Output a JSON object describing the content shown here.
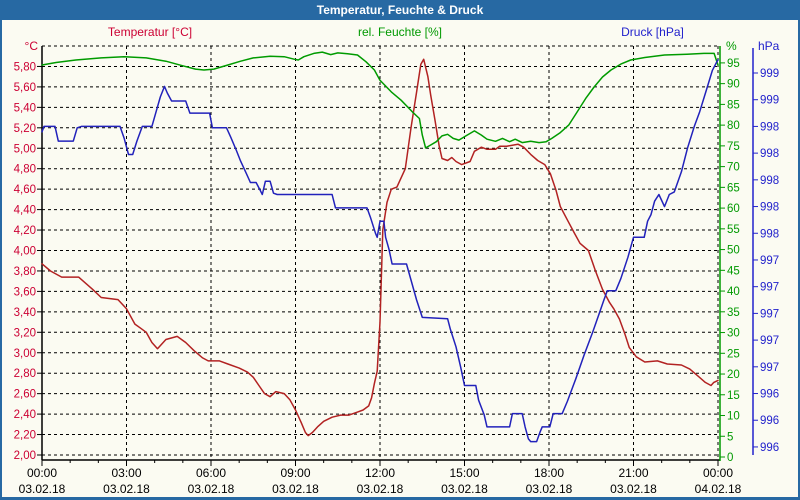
{
  "window": {
    "title": "Temperatur, Feuchte & Druck"
  },
  "chart_data": {
    "type": "line",
    "title": "Temperatur, Feuchte & Druck",
    "grid": {
      "color": "#000000",
      "dash": "3 3",
      "shown": true
    },
    "x_axis": {
      "range_hours": [
        0,
        24
      ],
      "major_tick_hours": 3,
      "minor_tick_hours": 1,
      "tick_times": [
        "00:00",
        "03:00",
        "06:00",
        "09:00",
        "12:00",
        "15:00",
        "18:00",
        "21:00",
        "00:00"
      ],
      "tick_dates": [
        "03.02.18",
        "03.02.18",
        "03.02.18",
        "03.02.18",
        "03.02.18",
        "03.02.18",
        "03.02.18",
        "03.02.18",
        "04.02.18"
      ]
    },
    "axes": {
      "temperature": {
        "label": "Temperatur [°C]",
        "unit": "°C",
        "color": "#CC0033",
        "side": "left",
        "min": 2.0,
        "max": 6.0,
        "tick_step": 0.2,
        "tick_labels": [
          "5,80",
          "5,60",
          "5,40",
          "5,20",
          "5,00",
          "4,80",
          "4,60",
          "4,40",
          "4,20",
          "4,00",
          "3,80",
          "3,60",
          "3,40",
          "3,20",
          "3,00",
          "2,80",
          "2,60",
          "2,40",
          "2,20",
          "2,00"
        ]
      },
      "humidity": {
        "label": "rel. Feuchte [%]",
        "unit": "%",
        "color": "#009900",
        "side": "right-inner",
        "tick_values": [
          95,
          90,
          85,
          80,
          75,
          70,
          65,
          60,
          55,
          50,
          45,
          40,
          35,
          30,
          25,
          20,
          15,
          10,
          5,
          0
        ],
        "tick_labels": [
          "95",
          "90",
          "85",
          "80",
          "75",
          "70",
          "65",
          "60",
          "55",
          "50",
          "45",
          "40",
          "35",
          "30",
          "25",
          "20",
          "15",
          "10",
          "5",
          "0"
        ]
      },
      "pressure": {
        "label": "Druck [hPa]",
        "unit": "hPa",
        "color": "#2222CC",
        "side": "right-outer",
        "tick_top_value": 999.2,
        "tick_step": 0.2,
        "tick_labels": [
          "999",
          "999",
          "998",
          "998",
          "998",
          "998",
          "998",
          "997",
          "997",
          "997",
          "997",
          "997",
          "996",
          "996",
          "996"
        ]
      }
    },
    "series": [
      {
        "name": "Temperatur",
        "axis": "temperature",
        "color": "#B22222",
        "points": [
          [
            0,
            3.87
          ],
          [
            0.3,
            3.8
          ],
          [
            0.7,
            3.74
          ],
          [
            1.3,
            3.74
          ],
          [
            1.8,
            3.62
          ],
          [
            2.1,
            3.54
          ],
          [
            2.7,
            3.52
          ],
          [
            3,
            3.43
          ],
          [
            3.3,
            3.28
          ],
          [
            3.5,
            3.24
          ],
          [
            3.7,
            3.2
          ],
          [
            3.9,
            3.1
          ],
          [
            4.1,
            3.04
          ],
          [
            4.4,
            3.13
          ],
          [
            4.8,
            3.16
          ],
          [
            5.1,
            3.1
          ],
          [
            5.4,
            3.02
          ],
          [
            5.7,
            2.95
          ],
          [
            5.9,
            2.92
          ],
          [
            6.3,
            2.92
          ],
          [
            6.6,
            2.89
          ],
          [
            7,
            2.85
          ],
          [
            7.3,
            2.81
          ],
          [
            7.5,
            2.76
          ],
          [
            7.7,
            2.68
          ],
          [
            7.9,
            2.6
          ],
          [
            8.1,
            2.57
          ],
          [
            8.3,
            2.62
          ],
          [
            8.6,
            2.6
          ],
          [
            8.8,
            2.54
          ],
          [
            9,
            2.44
          ],
          [
            9.2,
            2.32
          ],
          [
            9.35,
            2.22
          ],
          [
            9.45,
            2.19
          ],
          [
            9.6,
            2.22
          ],
          [
            9.8,
            2.28
          ],
          [
            10,
            2.33
          ],
          [
            10.3,
            2.37
          ],
          [
            10.6,
            2.39
          ],
          [
            10.9,
            2.39
          ],
          [
            11.2,
            2.42
          ],
          [
            11.4,
            2.44
          ],
          [
            11.6,
            2.48
          ],
          [
            11.7,
            2.56
          ],
          [
            11.8,
            2.7
          ],
          [
            11.9,
            2.82
          ],
          [
            12,
            3.3
          ],
          [
            12.1,
            4.2
          ],
          [
            12.25,
            4.47
          ],
          [
            12.4,
            4.6
          ],
          [
            12.6,
            4.62
          ],
          [
            12.9,
            4.8
          ],
          [
            13.1,
            5.2
          ],
          [
            13.3,
            5.55
          ],
          [
            13.45,
            5.82
          ],
          [
            13.55,
            5.87
          ],
          [
            13.7,
            5.7
          ],
          [
            13.8,
            5.52
          ],
          [
            13.95,
            5.28
          ],
          [
            14.1,
            5.02
          ],
          [
            14.2,
            4.9
          ],
          [
            14.4,
            4.88
          ],
          [
            14.55,
            4.91
          ],
          [
            14.7,
            4.87
          ],
          [
            14.9,
            4.84
          ],
          [
            15.2,
            4.87
          ],
          [
            15.35,
            4.97
          ],
          [
            15.6,
            5.01
          ],
          [
            15.8,
            4.99
          ],
          [
            16.1,
            4.99
          ],
          [
            16.25,
            5.02
          ],
          [
            16.5,
            5.02
          ],
          [
            16.9,
            5.04
          ],
          [
            17.1,
            5.01
          ],
          [
            17.35,
            4.94
          ],
          [
            17.6,
            4.88
          ],
          [
            17.85,
            4.84
          ],
          [
            18.05,
            4.75
          ],
          [
            18.25,
            4.59
          ],
          [
            18.4,
            4.43
          ],
          [
            18.65,
            4.3
          ],
          [
            18.9,
            4.17
          ],
          [
            19.1,
            4.07
          ],
          [
            19.4,
            4
          ],
          [
            19.65,
            3.8
          ],
          [
            19.9,
            3.62
          ],
          [
            20.15,
            3.49
          ],
          [
            20.3,
            3.43
          ],
          [
            20.5,
            3.33
          ],
          [
            20.7,
            3.18
          ],
          [
            20.85,
            3.05
          ],
          [
            21.1,
            2.96
          ],
          [
            21.4,
            2.91
          ],
          [
            21.85,
            2.92
          ],
          [
            22.2,
            2.89
          ],
          [
            22.7,
            2.88
          ],
          [
            23,
            2.84
          ],
          [
            23.3,
            2.77
          ],
          [
            23.55,
            2.71
          ],
          [
            23.75,
            2.68
          ],
          [
            23.85,
            2.71
          ],
          [
            24,
            2.73
          ]
        ]
      },
      {
        "name": "rel. Feuchte",
        "axis": "humidity",
        "color": "#009B00",
        "points": [
          [
            0,
            94.5
          ],
          [
            0.5,
            95.1
          ],
          [
            1.2,
            95.7
          ],
          [
            2.1,
            96.2
          ],
          [
            2.9,
            96.5
          ],
          [
            3.7,
            96.2
          ],
          [
            4.4,
            95.4
          ],
          [
            5,
            94.3
          ],
          [
            5.45,
            93.5
          ],
          [
            5.75,
            93.3
          ],
          [
            6.1,
            93.5
          ],
          [
            6.6,
            94.5
          ],
          [
            7.05,
            95.4
          ],
          [
            7.5,
            96.2
          ],
          [
            8.1,
            96.6
          ],
          [
            8.6,
            96.5
          ],
          [
            8.95,
            95.9
          ],
          [
            9.1,
            95.7
          ],
          [
            9.3,
            96.5
          ],
          [
            9.65,
            97.3
          ],
          [
            9.95,
            97.6
          ],
          [
            10.25,
            97
          ],
          [
            10.5,
            97.4
          ],
          [
            10.85,
            97.2
          ],
          [
            11.2,
            96.9
          ],
          [
            11.5,
            95.3
          ],
          [
            11.8,
            93.3
          ],
          [
            12,
            90.8
          ],
          [
            12.4,
            88
          ],
          [
            12.75,
            86
          ],
          [
            13.15,
            83.2
          ],
          [
            13.4,
            81.6
          ],
          [
            13.5,
            77.6
          ],
          [
            13.62,
            74.5
          ],
          [
            13.8,
            75.2
          ],
          [
            14,
            76
          ],
          [
            14.2,
            77.4
          ],
          [
            14.4,
            77.8
          ],
          [
            14.6,
            76.8
          ],
          [
            14.8,
            76.4
          ],
          [
            15.05,
            77.4
          ],
          [
            15.35,
            78.6
          ],
          [
            15.6,
            77.6
          ],
          [
            15.8,
            76.6
          ],
          [
            16.1,
            76.1
          ],
          [
            16.35,
            76.8
          ],
          [
            16.6,
            76
          ],
          [
            16.8,
            76.6
          ],
          [
            17.05,
            75.8
          ],
          [
            17.35,
            76.1
          ],
          [
            17.65,
            75.8
          ],
          [
            17.9,
            76
          ],
          [
            18.1,
            76.8
          ],
          [
            18.4,
            78.2
          ],
          [
            18.7,
            80
          ],
          [
            19,
            83.2
          ],
          [
            19.3,
            86.4
          ],
          [
            19.6,
            89.2
          ],
          [
            19.9,
            91.6
          ],
          [
            20.2,
            93.3
          ],
          [
            20.55,
            94.7
          ],
          [
            20.9,
            95.7
          ],
          [
            21.4,
            96.3
          ],
          [
            22.1,
            96.9
          ],
          [
            22.9,
            97.1
          ],
          [
            23.5,
            97.3
          ],
          [
            23.86,
            97.3
          ],
          [
            24,
            94.5
          ]
        ]
      },
      {
        "name": "Druck",
        "axis": "pressure",
        "color": "#2222BB",
        "points": [
          [
            0,
            998.76
          ],
          [
            0.07,
            998.8
          ],
          [
            0.46,
            998.8
          ],
          [
            0.58,
            998.69
          ],
          [
            1.11,
            998.69
          ],
          [
            1.25,
            998.79
          ],
          [
            1.4,
            998.8
          ],
          [
            2.77,
            998.8
          ],
          [
            2.92,
            998.71
          ],
          [
            3.07,
            998.59
          ],
          [
            3.22,
            998.59
          ],
          [
            3.37,
            998.69
          ],
          [
            3.56,
            998.8
          ],
          [
            3.9,
            998.8
          ],
          [
            4.05,
            998.91
          ],
          [
            4.2,
            999.02
          ],
          [
            4.35,
            999.1
          ],
          [
            4.45,
            999.05
          ],
          [
            4.6,
            998.99
          ],
          [
            5.1,
            998.99
          ],
          [
            5.25,
            998.9
          ],
          [
            5.95,
            998.9
          ],
          [
            6.05,
            998.79
          ],
          [
            6.55,
            998.79
          ],
          [
            6.7,
            998.72
          ],
          [
            6.9,
            998.62
          ],
          [
            7.05,
            998.54
          ],
          [
            7.25,
            998.45
          ],
          [
            7.4,
            998.38
          ],
          [
            7.6,
            998.38
          ],
          [
            7.75,
            998.32
          ],
          [
            7.82,
            998.29
          ],
          [
            7.93,
            998.39
          ],
          [
            8.1,
            998.39
          ],
          [
            8.22,
            998.3
          ],
          [
            8.35,
            998.29
          ],
          [
            10.3,
            998.29
          ],
          [
            10.42,
            998.19
          ],
          [
            11.54,
            998.19
          ],
          [
            11.66,
            998.12
          ],
          [
            11.84,
            998
          ],
          [
            11.9,
            997.97
          ],
          [
            12,
            998.09
          ],
          [
            12.14,
            998.09
          ],
          [
            12.2,
            997.97
          ],
          [
            12.32,
            997.88
          ],
          [
            12.43,
            997.77
          ],
          [
            12.94,
            997.77
          ],
          [
            13.1,
            997.65
          ],
          [
            13.3,
            997.5
          ],
          [
            13.5,
            997.37
          ],
          [
            14.4,
            997.36
          ],
          [
            14.5,
            997.28
          ],
          [
            14.7,
            997.15
          ],
          [
            14.86,
            997
          ],
          [
            15,
            996.86
          ],
          [
            15.4,
            996.86
          ],
          [
            15.5,
            996.75
          ],
          [
            15.7,
            996.64
          ],
          [
            15.8,
            996.55
          ],
          [
            16.6,
            996.55
          ],
          [
            16.7,
            996.65
          ],
          [
            17.05,
            996.65
          ],
          [
            17.15,
            996.55
          ],
          [
            17.27,
            996.46
          ],
          [
            17.35,
            996.44
          ],
          [
            17.56,
            996.44
          ],
          [
            17.68,
            996.51
          ],
          [
            17.76,
            996.55
          ],
          [
            18.03,
            996.55
          ],
          [
            18.15,
            996.65
          ],
          [
            18.47,
            996.65
          ],
          [
            18.65,
            996.74
          ],
          [
            18.95,
            996.91
          ],
          [
            19.25,
            997.09
          ],
          [
            19.55,
            997.26
          ],
          [
            19.8,
            997.41
          ],
          [
            19.95,
            997.5
          ],
          [
            20.07,
            997.57
          ],
          [
            20.37,
            997.57
          ],
          [
            20.55,
            997.66
          ],
          [
            20.8,
            997.82
          ],
          [
            21,
            997.97
          ],
          [
            21.38,
            997.97
          ],
          [
            21.5,
            998.09
          ],
          [
            21.62,
            998.14
          ],
          [
            21.75,
            998.24
          ],
          [
            21.9,
            998.29
          ],
          [
            22.1,
            998.2
          ],
          [
            22.27,
            998.29
          ],
          [
            22.45,
            998.31
          ],
          [
            22.7,
            998.46
          ],
          [
            22.92,
            998.64
          ],
          [
            23.16,
            998.8
          ],
          [
            23.35,
            998.91
          ],
          [
            23.6,
            999.08
          ],
          [
            23.8,
            999.22
          ],
          [
            24,
            999.3
          ]
        ]
      }
    ]
  }
}
